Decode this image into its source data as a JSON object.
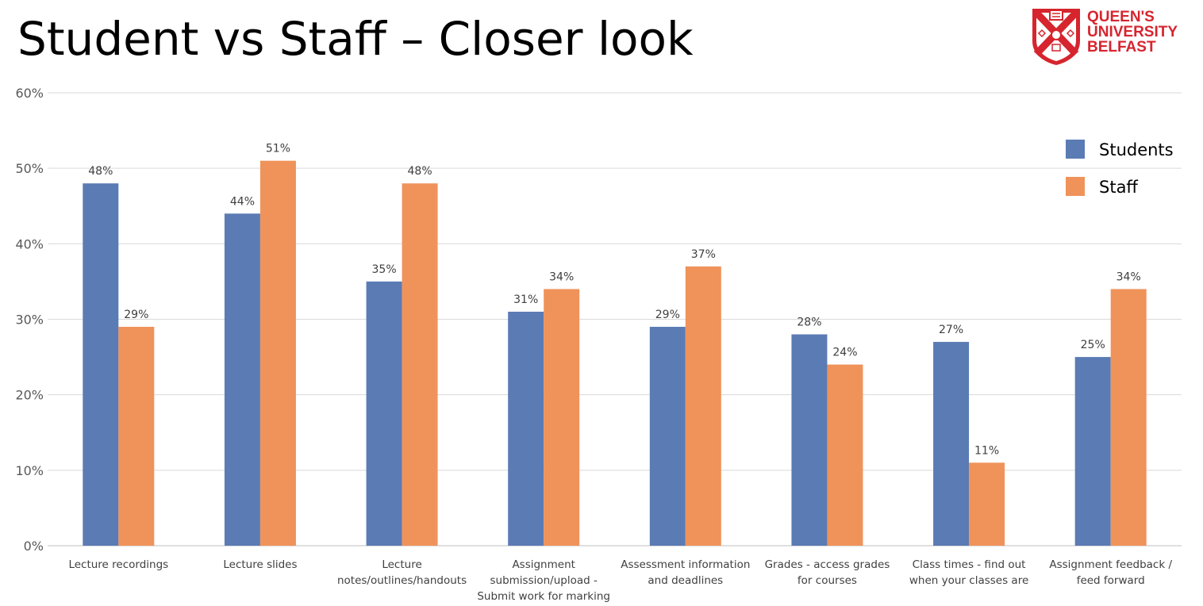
{
  "slide": {
    "title": "Student vs Staff – Closer look"
  },
  "logo": {
    "lines": [
      "QUEEN'S",
      "UNIVERSITY",
      "BELFAST"
    ],
    "brand_color": "#d6252e"
  },
  "chart_data": {
    "type": "bar",
    "categories": [
      [
        "Lecture recordings"
      ],
      [
        "Lecture slides"
      ],
      [
        "Lecture",
        "notes/outlines/handouts"
      ],
      [
        "Assignment",
        "submission/upload -",
        "Submit work for marking"
      ],
      [
        "Assessment information",
        "and deadlines"
      ],
      [
        "Grades - access grades",
        "for courses"
      ],
      [
        "Class times - find out",
        "when your classes are"
      ],
      [
        "Assignment feedback /",
        "feed forward"
      ]
    ],
    "series": [
      {
        "name": "Students",
        "color": "#5b7bb4",
        "values": [
          48,
          44,
          35,
          31,
          29,
          28,
          27,
          25
        ],
        "labels": [
          "48%",
          "44%",
          "35%",
          "31%",
          "29%",
          "28%",
          "27%",
          "25%"
        ]
      },
      {
        "name": "Staff",
        "color": "#ef935b",
        "values": [
          29,
          51,
          48,
          34,
          37,
          24,
          11,
          34
        ],
        "labels": [
          "29%",
          "51%",
          "48%",
          "34%",
          "37%",
          "24%",
          "11%",
          "34%"
        ]
      }
    ],
    "ylim": [
      0,
      60
    ],
    "yticks": [
      0,
      10,
      20,
      30,
      40,
      50,
      60
    ],
    "ytick_labels": [
      "0%",
      "10%",
      "20%",
      "30%",
      "40%",
      "50%",
      "60%"
    ],
    "grid": true,
    "legend_position": "top-right",
    "gridline_color": "#d9d9d9"
  }
}
